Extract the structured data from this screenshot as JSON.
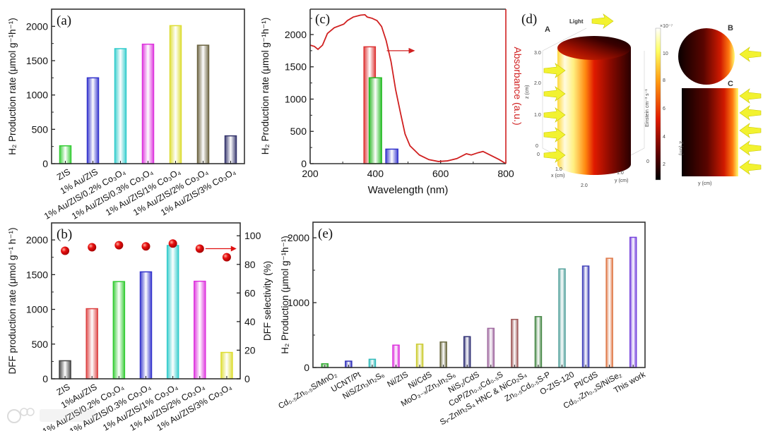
{
  "figure": {
    "watermark": "东数跨境"
  },
  "chart_data": [
    {
      "id": "a",
      "type": "bar",
      "panel_label": "(a)",
      "ylabel": "H₂ Production rate (μmol g⁻¹h⁻¹)",
      "xlabel": "",
      "ylim": [
        0,
        2250
      ],
      "yticks": [
        "0",
        "500",
        "1000",
        "1500",
        "2000"
      ],
      "categories": [
        "ZIS",
        "1% Au/ZIS",
        "1% Au/ZIS/0.2% Co₃O₄",
        "1% Au/ZIS/0.3% Co₃O₄",
        "1% Au/ZIS/1% Co₃O₄",
        "1% Au/ZIS/2% Co₃O₄",
        "1% Au/ZIS/3% Co₃O₄"
      ],
      "values": [
        260,
        1250,
        1675,
        1740,
        2010,
        1725,
        405
      ],
      "colors": [
        "#33cc33",
        "#3333cc",
        "#33cccc",
        "#dd33dd",
        "#dddd33",
        "#6b6340",
        "#33336b"
      ]
    },
    {
      "id": "b",
      "type": "bar",
      "panel_label": "(b)",
      "ylabel": "DFF production rate (μmol g⁻¹ h⁻¹)",
      "ylabel_right": "DFF selectivity (%)",
      "ylim": [
        0,
        2245
      ],
      "ylim_right": [
        0,
        109
      ],
      "yticks": [
        "0",
        "500",
        "1000",
        "1500",
        "2000"
      ],
      "yticks_right": [
        "0",
        "20",
        "40",
        "60",
        "80",
        "100"
      ],
      "categories": [
        "ZIS",
        "1%Au/ZIS",
        "1% Au/ZIS/0.2% Co₃O₄",
        "1% Au/ZIS/0.3% Co₃O₄",
        "1% Au/ZIS/1% Co₃O₄",
        "1% Au/ZIS/2% Co₃O₄",
        "1% Au/ZIS/3% Co₃O₄"
      ],
      "series": [
        {
          "name": "DFF production rate",
          "axis": "left",
          "type": "bar",
          "values": [
            260,
            1010,
            1400,
            1540,
            1920,
            1405,
            380
          ]
        },
        {
          "name": "DFF selectivity",
          "axis": "right",
          "type": "scatter",
          "color": "#e01010",
          "values": [
            89.5,
            92,
            93.4,
            92.6,
            94.6,
            91,
            85
          ]
        }
      ],
      "colors": [
        "#444444",
        "#dd4444",
        "#33cc33",
        "#3333cc",
        "#33cccc",
        "#dd33dd",
        "#dddd33"
      ]
    },
    {
      "id": "c",
      "type": "bar+line",
      "panel_label": "(c)",
      "xlabel": "Wavelength (nm)",
      "ylabel": "H₂ Production rate (μmol g⁻¹h⁻¹)",
      "ylabel_right": "Absorbance (a.u.)",
      "xlim": [
        200,
        800
      ],
      "ylim": [
        0,
        2393
      ],
      "xticks": [
        "200",
        "400",
        "600",
        "800"
      ],
      "yticks": [
        "0",
        "500",
        "1000",
        "1500",
        "2000"
      ],
      "bars": [
        {
          "x_range": [
            365,
            400
          ],
          "value": 1810,
          "color": "#dd3333"
        },
        {
          "x_range": [
            381,
            419
          ],
          "value": 1330,
          "color": "#22bb22"
        },
        {
          "x_range": [
            432,
            469
          ],
          "value": 225,
          "color": "#3333cc"
        }
      ],
      "absorbance": {
        "color": "#d02020",
        "x": [
          200,
          213,
          224,
          238,
          253,
          274,
          303,
          314,
          332,
          354,
          368,
          375,
          390,
          405,
          419,
          433,
          448,
          462,
          477,
          491,
          506,
          535,
          564,
          593,
          621,
          650,
          679,
          694,
          715,
          730,
          759,
          780,
          800
        ],
        "y": [
          0.767,
          0.759,
          0.74,
          0.767,
          0.843,
          0.88,
          0.903,
          0.926,
          0.949,
          0.961,
          0.964,
          0.949,
          0.941,
          0.926,
          0.888,
          0.797,
          0.661,
          0.48,
          0.328,
          0.192,
          0.116,
          0.056,
          0.026,
          0.014,
          0.018,
          0.033,
          0.064,
          0.056,
          0.071,
          0.079,
          0.048,
          0.026,
          0.0
        ]
      }
    },
    {
      "id": "d",
      "type": "heatmap",
      "panel_label": "(d)",
      "light_label": "Light",
      "sub_labels": [
        "A",
        "B",
        "C"
      ],
      "z_ticks": [
        "3.0",
        "2.0",
        "1.0",
        "0"
      ],
      "z_label": "z (cm)",
      "x_ticks": [
        "0",
        "1.0",
        "2.0"
      ],
      "x_label": "x (cm)",
      "y_ticks": [
        "1.0",
        "0"
      ],
      "y_label": "y (cm)",
      "colorbar_label": "Einstein cm⁻³ s⁻¹",
      "colorbar_exponent": "×10⁻⁷",
      "colorbar_ticks": [
        "10",
        "8",
        "6",
        "4",
        "2"
      ],
      "c_y_label": "y (cm)",
      "c_z_label": "Z (cm)"
    },
    {
      "id": "e",
      "type": "bar",
      "panel_label": "(e)",
      "ylabel": "H₂ Production (μmol g⁻¹h⁻¹)",
      "ylim": [
        0,
        2240
      ],
      "yticks": [
        "0",
        "1000",
        "2000"
      ],
      "categories": [
        "Cd₀.₅Zn₀.₅S/MnO₂",
        "UCNT/Pt",
        "NiS/Zn₃In₂S₆",
        "Ni/ZIS",
        "Ni/CdS",
        "MoO₃₋ₓ/Zn₃In₂S₆",
        "NiS₂/CdS",
        "CoP/Zn₀.₅Cd₀.₅S",
        "Sᵥ-ZnIn₂S₄ HNC & NiCo₂S₄",
        "Zn₀.₅Cd₀.₅S-P",
        "O-ZIS-120",
        "Pt/CdS",
        "Cd₀.₇Zn₀.₃S/NiSe₂",
        "This work"
      ],
      "values": [
        58,
        98,
        127,
        345,
        360,
        393,
        476,
        604,
        742,
        785,
        1520,
        1564,
        1684,
        2007
      ],
      "colors": [
        "#33aa33",
        "#3333bb",
        "#33bbbb",
        "#dd33dd",
        "#cccc33",
        "#6b6a40",
        "#333377",
        "#a06aa0",
        "#a05a5a",
        "#4a8a4a",
        "#5aa5a0",
        "#4444bb",
        "#e07a4a",
        "#7744dd"
      ]
    }
  ]
}
